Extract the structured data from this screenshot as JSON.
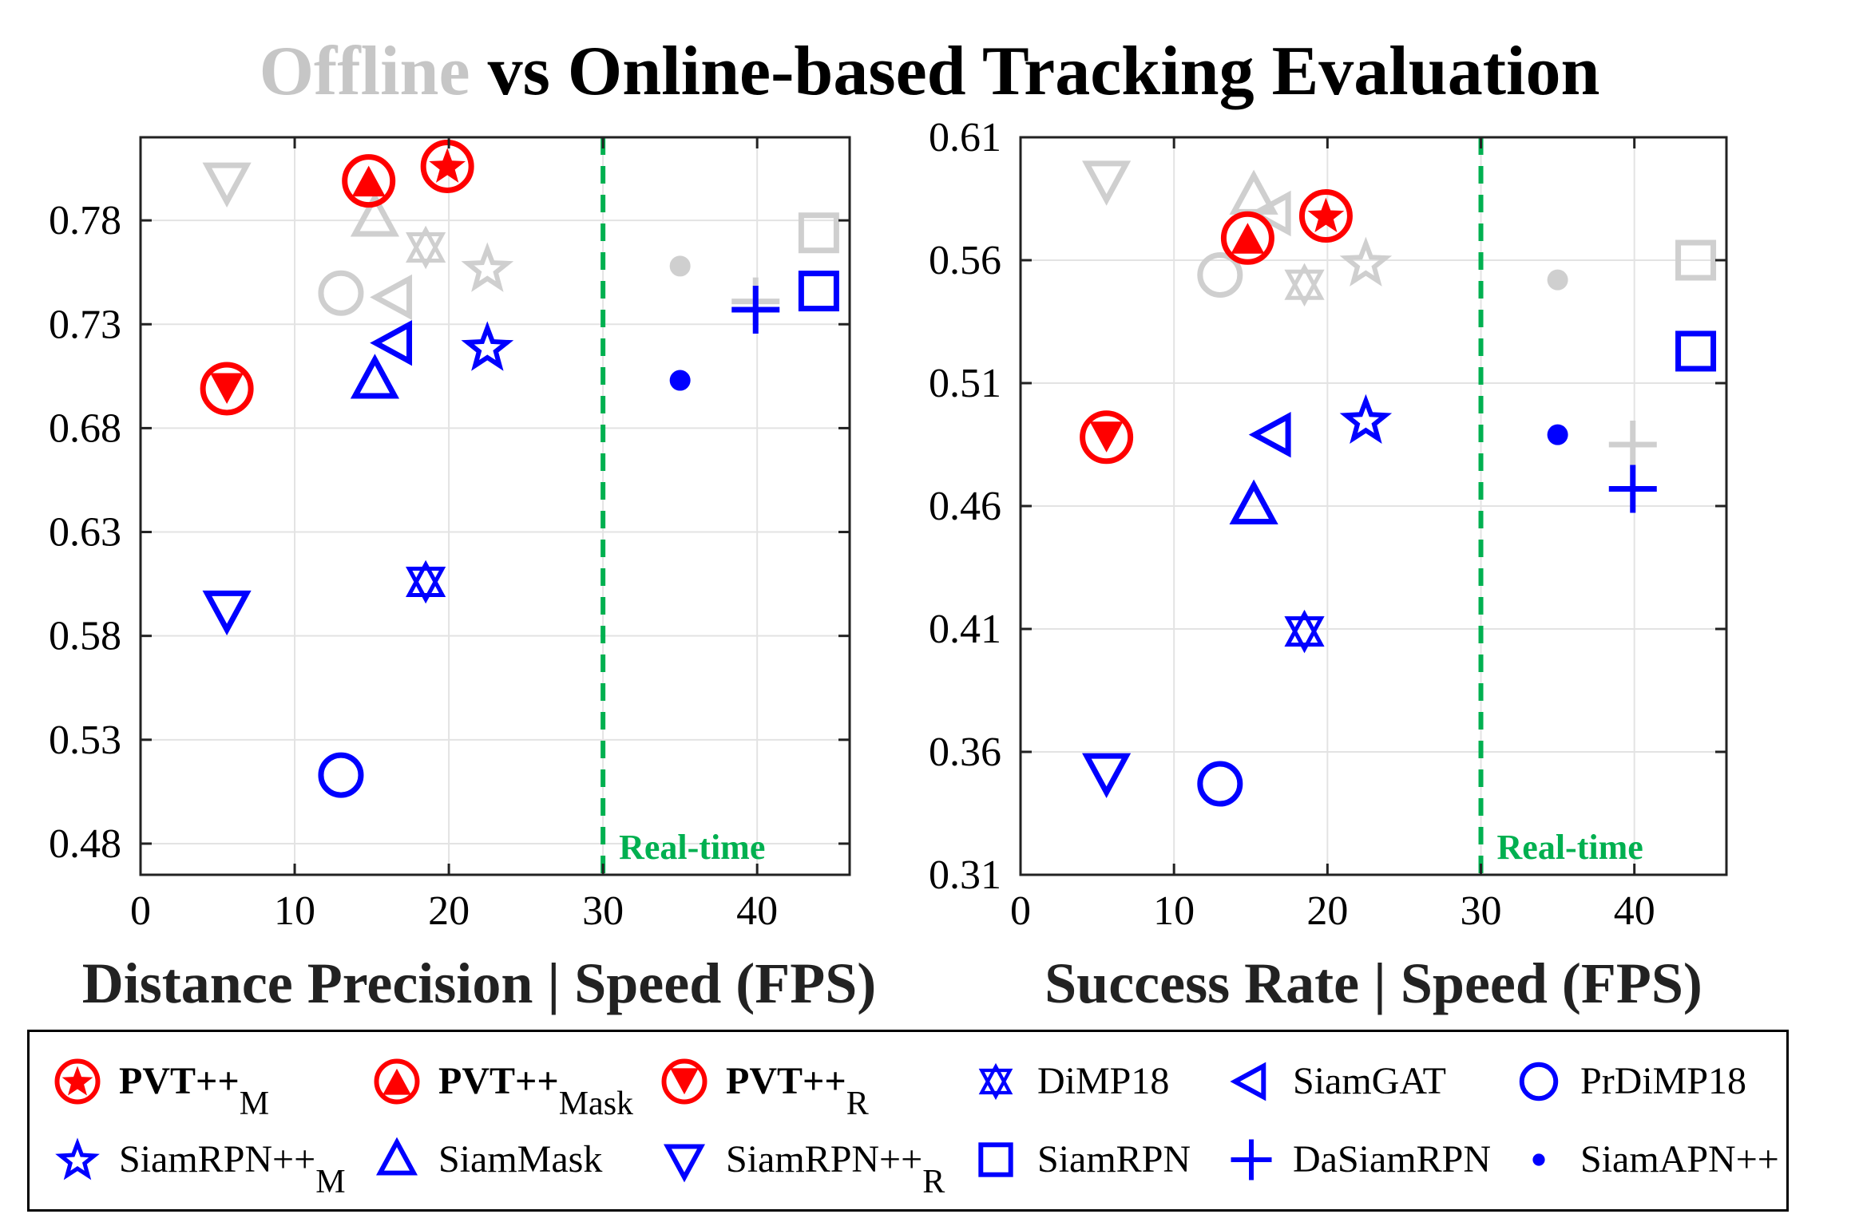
{
  "title": {
    "part1": "Offline",
    "part2": "vs Online-based Tracking Evaluation"
  },
  "colors": {
    "red": "#ff0000",
    "blue": "#0000ff",
    "gray": "#cfcfcf",
    "green": "#00b050"
  },
  "chart_data": [
    {
      "type": "scatter",
      "xlabel": "Distance Precision | Speed (FPS)",
      "xlim": [
        0,
        46
      ],
      "ylim": [
        0.465,
        0.82
      ],
      "xticks": [
        "0",
        "10",
        "20",
        "30",
        "40"
      ],
      "xtick_values": [
        0,
        10,
        20,
        30,
        40
      ],
      "yticks": [
        "0.48",
        "0.53",
        "0.58",
        "0.63",
        "0.68",
        "0.73",
        "0.78"
      ],
      "ytick_values": [
        0.48,
        0.53,
        0.58,
        0.63,
        0.68,
        0.73,
        0.78
      ],
      "grid": true,
      "threshold": {
        "x": 30,
        "label": "Real-time"
      },
      "points": [
        {
          "tracker": "PVT++_M",
          "fps": 19.9,
          "value": 0.806
        },
        {
          "tracker": "PVT++_Mask",
          "fps": 14.8,
          "value": 0.799
        },
        {
          "tracker": "PVT++_R",
          "fps": 5.6,
          "value": 0.699
        },
        {
          "tracker": "DiMP18",
          "fps": 18.5,
          "value": 0.606,
          "offline": 0.767
        },
        {
          "tracker": "SiamGAT",
          "fps": 16.5,
          "value": 0.721,
          "offline": 0.743
        },
        {
          "tracker": "PrDiMP18",
          "fps": 13.0,
          "value": 0.513,
          "offline": 0.745
        },
        {
          "tracker": "SiamRPN++_M",
          "fps": 22.5,
          "value": 0.719,
          "offline": 0.757
        },
        {
          "tracker": "SiamMask",
          "fps": 15.2,
          "value": 0.703,
          "offline": 0.781
        },
        {
          "tracker": "SiamRPN++_R",
          "fps": 5.6,
          "value": 0.593,
          "offline": 0.799
        },
        {
          "tracker": "SiamRPN",
          "fps": 44.0,
          "value": 0.746,
          "offline": 0.774
        },
        {
          "tracker": "DaSiamRPN",
          "fps": 39.9,
          "value": 0.737,
          "offline": 0.741
        },
        {
          "tracker": "SiamAPN++",
          "fps": 35.0,
          "value": 0.703,
          "offline": 0.758
        }
      ]
    },
    {
      "type": "scatter",
      "xlabel": "Success Rate | Speed (FPS)",
      "xlim": [
        0,
        46
      ],
      "ylim": [
        0.31,
        0.61
      ],
      "xticks": [
        "0",
        "10",
        "20",
        "30",
        "40"
      ],
      "xtick_values": [
        0,
        10,
        20,
        30,
        40
      ],
      "yticks": [
        "0.31",
        "0.36",
        "0.41",
        "0.46",
        "0.51",
        "0.56",
        "0.61"
      ],
      "ytick_values": [
        0.31,
        0.36,
        0.41,
        0.46,
        0.51,
        0.56,
        0.61
      ],
      "grid": true,
      "threshold": {
        "x": 30,
        "label": "Real-time"
      },
      "points": [
        {
          "tracker": "PVT++_M",
          "fps": 19.9,
          "value": 0.578
        },
        {
          "tracker": "PVT++_Mask",
          "fps": 14.8,
          "value": 0.569
        },
        {
          "tracker": "PVT++_R",
          "fps": 5.6,
          "value": 0.488
        },
        {
          "tracker": "DiMP18",
          "fps": 18.5,
          "value": 0.409,
          "offline": 0.55
        },
        {
          "tracker": "SiamGAT",
          "fps": 16.5,
          "value": 0.489,
          "offline": 0.579
        },
        {
          "tracker": "PrDiMP18",
          "fps": 13.0,
          "value": 0.347,
          "offline": 0.554
        },
        {
          "tracker": "SiamRPN++_M",
          "fps": 22.5,
          "value": 0.495,
          "offline": 0.559
        },
        {
          "tracker": "SiamMask",
          "fps": 15.2,
          "value": 0.46,
          "offline": 0.586
        },
        {
          "tracker": "SiamRPN++_R",
          "fps": 5.6,
          "value": 0.352,
          "offline": 0.593
        },
        {
          "tracker": "SiamRPN",
          "fps": 44.0,
          "value": 0.523,
          "offline": 0.56
        },
        {
          "tracker": "DaSiamRPN",
          "fps": 39.9,
          "value": 0.467,
          "offline": 0.485
        },
        {
          "tracker": "SiamAPN++",
          "fps": 35.0,
          "value": 0.489,
          "offline": 0.552
        }
      ]
    }
  ],
  "legend": [
    {
      "tracker": "PVT++_M",
      "label": "PVT++",
      "sub": "M",
      "bold": true,
      "marker": "circle-star",
      "color": "red"
    },
    {
      "tracker": "PVT++_Mask",
      "label": "PVT++",
      "sub": "Mask",
      "bold": true,
      "marker": "circle-triangle-up",
      "color": "red"
    },
    {
      "tracker": "PVT++_R",
      "label": "PVT++",
      "sub": "R",
      "bold": true,
      "marker": "circle-triangle-down",
      "color": "red"
    },
    {
      "tracker": "DiMP18",
      "label": "DiMP18",
      "sub": "",
      "bold": false,
      "marker": "hexagram",
      "color": "blue"
    },
    {
      "tracker": "SiamGAT",
      "label": "SiamGAT",
      "sub": "",
      "bold": false,
      "marker": "triangle-left",
      "color": "blue"
    },
    {
      "tracker": "PrDiMP18",
      "label": "PrDiMP18",
      "sub": "",
      "bold": false,
      "marker": "circle",
      "color": "blue"
    },
    {
      "tracker": "SiamRPN++_M",
      "label": "SiamRPN++",
      "sub": "M",
      "bold": false,
      "marker": "pentagram",
      "color": "blue"
    },
    {
      "tracker": "SiamMask",
      "label": "SiamMask",
      "sub": "",
      "bold": false,
      "marker": "triangle-up",
      "color": "blue"
    },
    {
      "tracker": "SiamRPN++_R",
      "label": "SiamRPN++",
      "sub": "R",
      "bold": false,
      "marker": "triangle-down",
      "color": "blue"
    },
    {
      "tracker": "SiamRPN",
      "label": "SiamRPN",
      "sub": "",
      "bold": false,
      "marker": "square",
      "color": "blue"
    },
    {
      "tracker": "DaSiamRPN",
      "label": "DaSiamRPN",
      "sub": "",
      "bold": false,
      "marker": "plus",
      "color": "blue"
    },
    {
      "tracker": "SiamAPN++",
      "label": "SiamAPN++",
      "sub": "",
      "bold": false,
      "marker": "dot",
      "color": "blue"
    }
  ]
}
